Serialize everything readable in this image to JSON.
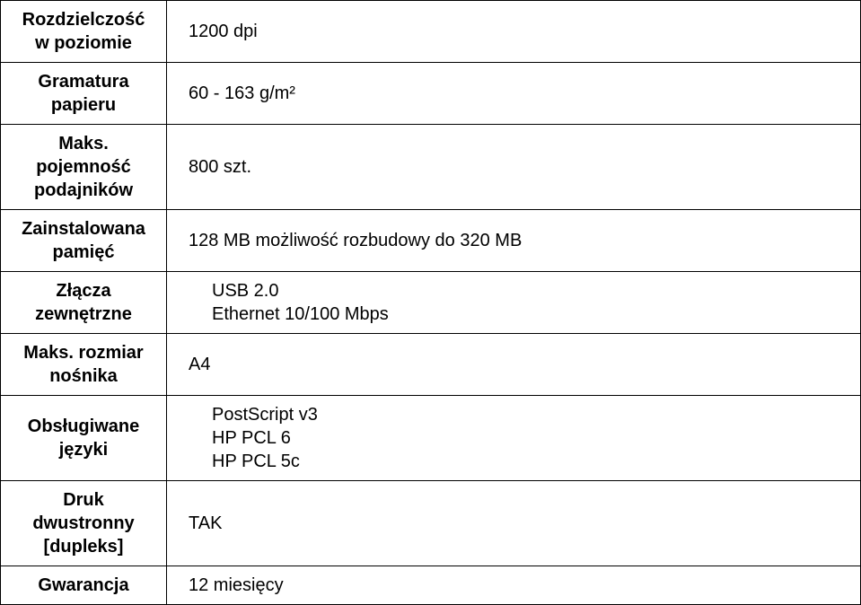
{
  "rows": [
    {
      "label": "Rozdzielczość\nw poziomie",
      "value": "1200 dpi",
      "indent": false
    },
    {
      "label": "Gramatura\npapieru",
      "value": "60 - 163 g/m²",
      "indent": false
    },
    {
      "label": "Maks.\npojemność\npodajników",
      "value": "800 szt.",
      "indent": false
    },
    {
      "label": "Zainstalowana\npamięć",
      "value": "128 MB możliwość rozbudowy do 320 MB",
      "indent": false
    },
    {
      "label": "Złącza\nzewnętrzne",
      "value": "USB 2.0\nEthernet 10/100 Mbps",
      "indent": true
    },
    {
      "label": "Maks. rozmiar\nnośnika",
      "value": "A4",
      "indent": false
    },
    {
      "label": "Obsługiwane\njęzyki",
      "value": "PostScript v3\nHP PCL 6\nHP PCL 5c",
      "indent": true
    },
    {
      "label": "Druk\ndwustronny\n[dupleks]",
      "value": "TAK",
      "indent": false
    },
    {
      "label": "Gwarancja",
      "value": "12 miesięcy",
      "indent": false
    }
  ]
}
